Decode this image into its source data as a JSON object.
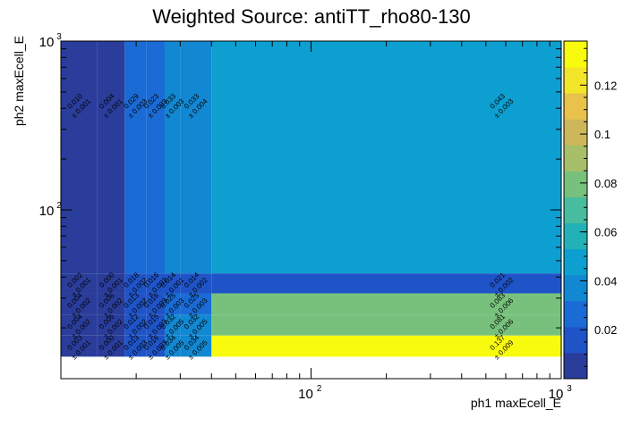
{
  "chart_data": {
    "type": "heatmap",
    "title": "Weighted Source: antiTT_rho80-130",
    "xlabel": "ph1 maxEcell_E",
    "ylabel": "ph2 maxEcell_E",
    "x_scale": "log",
    "y_scale": "log",
    "xlim": [
      10,
      1000
    ],
    "ylim": [
      10,
      1000
    ],
    "x_ticks": [
      {
        "value": 100,
        "base": "10",
        "exp": "2"
      },
      {
        "value": 1000,
        "base": "10",
        "exp": "3"
      }
    ],
    "y_ticks": [
      {
        "value": 100,
        "base": "10",
        "exp": "2"
      },
      {
        "value": 1000,
        "base": "10",
        "exp": "3"
      }
    ],
    "x_bin_edges": [
      10,
      14,
      18,
      22,
      26,
      30,
      40,
      1000
    ],
    "y_bin_edges": [
      10,
      13.5,
      18,
      24,
      32,
      42,
      1000
    ],
    "z_range": [
      0,
      0.138
    ],
    "colorbar_ticks": [
      "0.02",
      "0.04",
      "0.06",
      "0.08",
      "0.1",
      "0.12"
    ],
    "colorbar_tick_values": [
      0.02,
      0.04,
      0.06,
      0.08,
      0.1,
      0.12
    ],
    "cells": [
      {
        "ix": 0,
        "iy": 5,
        "value": 0.01,
        "label": "0.010",
        "err": "± 0.001"
      },
      {
        "ix": 1,
        "iy": 5,
        "value": 0.004,
        "label": "0.004",
        "err": "± 0.001"
      },
      {
        "ix": 2,
        "iy": 5,
        "value": 0.029,
        "label": "0.029",
        "err": "± 0.003"
      },
      {
        "ix": 3,
        "iy": 5,
        "value": 0.023,
        "label": "0.023",
        "err": "± 0.003"
      },
      {
        "ix": 4,
        "iy": 5,
        "value": 0.033,
        "label": "0.033",
        "err": "± 0.003"
      },
      {
        "ix": 5,
        "iy": 5,
        "value": 0.033,
        "label": "0.033",
        "err": "± 0.004"
      },
      {
        "ix": 6,
        "iy": 5,
        "value": 0.043,
        "label": "0.043",
        "err": "± 0.003"
      },
      {
        "ix": 0,
        "iy": 4,
        "value": 0.002,
        "label": "0.002",
        "err": "± 0.001"
      },
      {
        "ix": 1,
        "iy": 4,
        "value": 0.0,
        "label": "0.000",
        "err": "± 0.001"
      },
      {
        "ix": 2,
        "iy": 4,
        "value": 0.018,
        "label": "0.018",
        "err": "± 0.002"
      },
      {
        "ix": 3,
        "iy": 4,
        "value": 0.016,
        "label": "0.016",
        "err": "± 0.002"
      },
      {
        "ix": 4,
        "iy": 4,
        "value": 0.014,
        "label": "0.014",
        "err": "± 0.001"
      },
      {
        "ix": 5,
        "iy": 4,
        "value": 0.014,
        "label": "0.014",
        "err": "± 0.002"
      },
      {
        "ix": 6,
        "iy": 4,
        "value": 0.021,
        "label": "0.021",
        "err": "± 0.002"
      },
      {
        "ix": 0,
        "iy": 3,
        "value": 0.004,
        "label": "0.004",
        "err": "± 0.002"
      },
      {
        "ix": 1,
        "iy": 3,
        "value": 0.006,
        "label": "0.006",
        "err": "± 0.002"
      },
      {
        "ix": 2,
        "iy": 3,
        "value": 0.013,
        "label": "0.013",
        "err": "± 0.002"
      },
      {
        "ix": 3,
        "iy": 3,
        "value": 0.016,
        "label": "0.016",
        "err": "± 0.003"
      },
      {
        "ix": 4,
        "iy": 3,
        "value": 0.025,
        "label": "0.025",
        "err": "± 0.003"
      },
      {
        "ix": 5,
        "iy": 3,
        "value": 0.025,
        "label": "0.025",
        "err": "± 0.003"
      },
      {
        "ix": 6,
        "iy": 3,
        "value": 0.083,
        "label": "0.083",
        "err": "± 0.006"
      },
      {
        "ix": 0,
        "iy": 2,
        "value": 0.004,
        "label": "0.004",
        "err": "± 0.002"
      },
      {
        "ix": 1,
        "iy": 2,
        "value": 0.005,
        "label": "0.005",
        "err": "± 0.002"
      },
      {
        "ix": 2,
        "iy": 2,
        "value": 0.012,
        "label": "0.012",
        "err": "± 0.002"
      },
      {
        "ix": 3,
        "iy": 2,
        "value": 0.015,
        "label": "0.015",
        "err": "± 0.003"
      },
      {
        "ix": 4,
        "iy": 2,
        "value": 0.032,
        "label": "0.032",
        "err": "± 0.005"
      },
      {
        "ix": 5,
        "iy": 2,
        "value": 0.032,
        "label": "0.032",
        "err": "± 0.005"
      },
      {
        "ix": 6,
        "iy": 2,
        "value": 0.081,
        "label": "0.081",
        "err": "± 0.006"
      },
      {
        "ix": 0,
        "iy": 1,
        "value": 0.003,
        "label": "0.003",
        "err": "± 0.001"
      },
      {
        "ix": 1,
        "iy": 1,
        "value": 0.0,
        "label": "0.000",
        "err": "± 0.001"
      },
      {
        "ix": 2,
        "iy": 1,
        "value": 0.013,
        "label": "0.013",
        "err": "± 0.003"
      },
      {
        "ix": 3,
        "iy": 1,
        "value": 0.016,
        "label": "0.016",
        "err": "± 0.003"
      },
      {
        "ix": 4,
        "iy": 1,
        "value": 0.034,
        "label": "0.034",
        "err": "± 0.005"
      },
      {
        "ix": 5,
        "iy": 1,
        "value": 0.034,
        "label": "0.034",
        "err": "± 0.005"
      },
      {
        "ix": 6,
        "iy": 1,
        "value": 0.137,
        "label": "0.137",
        "err": "± 0.009"
      }
    ],
    "palette": [
      "#2a3d9b",
      "#1f54c8",
      "#1a6bd6",
      "#1288d2",
      "#0d9fd0",
      "#21b1b6",
      "#48bc9e",
      "#77c17d",
      "#a7bf68",
      "#cdb75a",
      "#e8c24a",
      "#f3e52a",
      "#f9fb0e"
    ],
    "grid": false,
    "legend": "colorbar-right"
  }
}
